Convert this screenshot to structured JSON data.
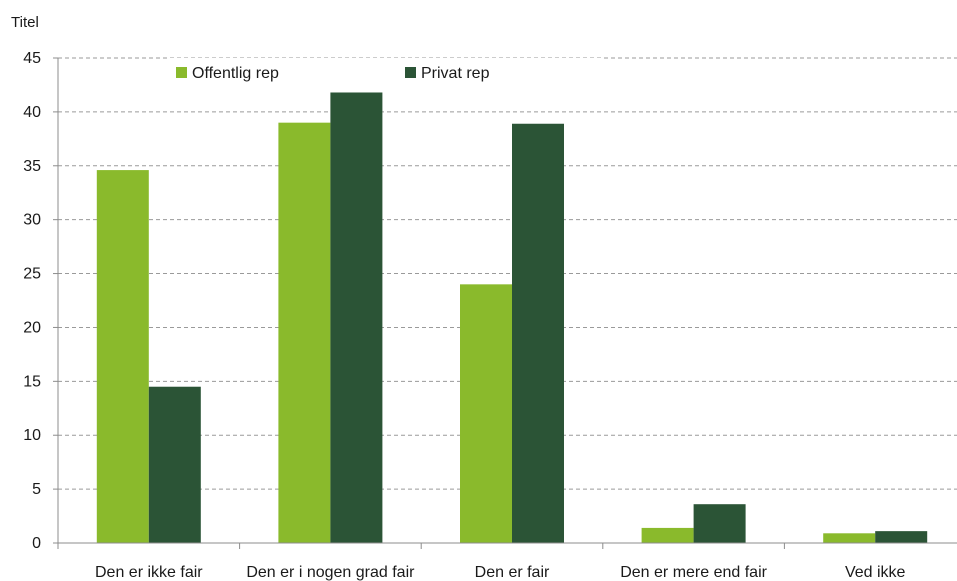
{
  "chart_data": {
    "type": "bar",
    "unit_label": "Titel",
    "categories": [
      "Den er ikke fair",
      "Den er i nogen grad fair",
      "Den er fair",
      "Den er mere end fair",
      "Ved ikke"
    ],
    "series": [
      {
        "name": "Offentlig rep",
        "color": "#8aba2c",
        "values": [
          34.6,
          39.0,
          24.0,
          1.4,
          0.9
        ]
      },
      {
        "name": "Privat rep",
        "color": "#2b5436",
        "values": [
          14.5,
          41.8,
          38.9,
          3.6,
          1.1
        ]
      }
    ],
    "ylim": [
      0,
      45
    ],
    "yticks": [
      0,
      5,
      10,
      15,
      20,
      25,
      30,
      35,
      40,
      45
    ],
    "grid": "horizontal dashed",
    "legend_position": "top-center"
  }
}
